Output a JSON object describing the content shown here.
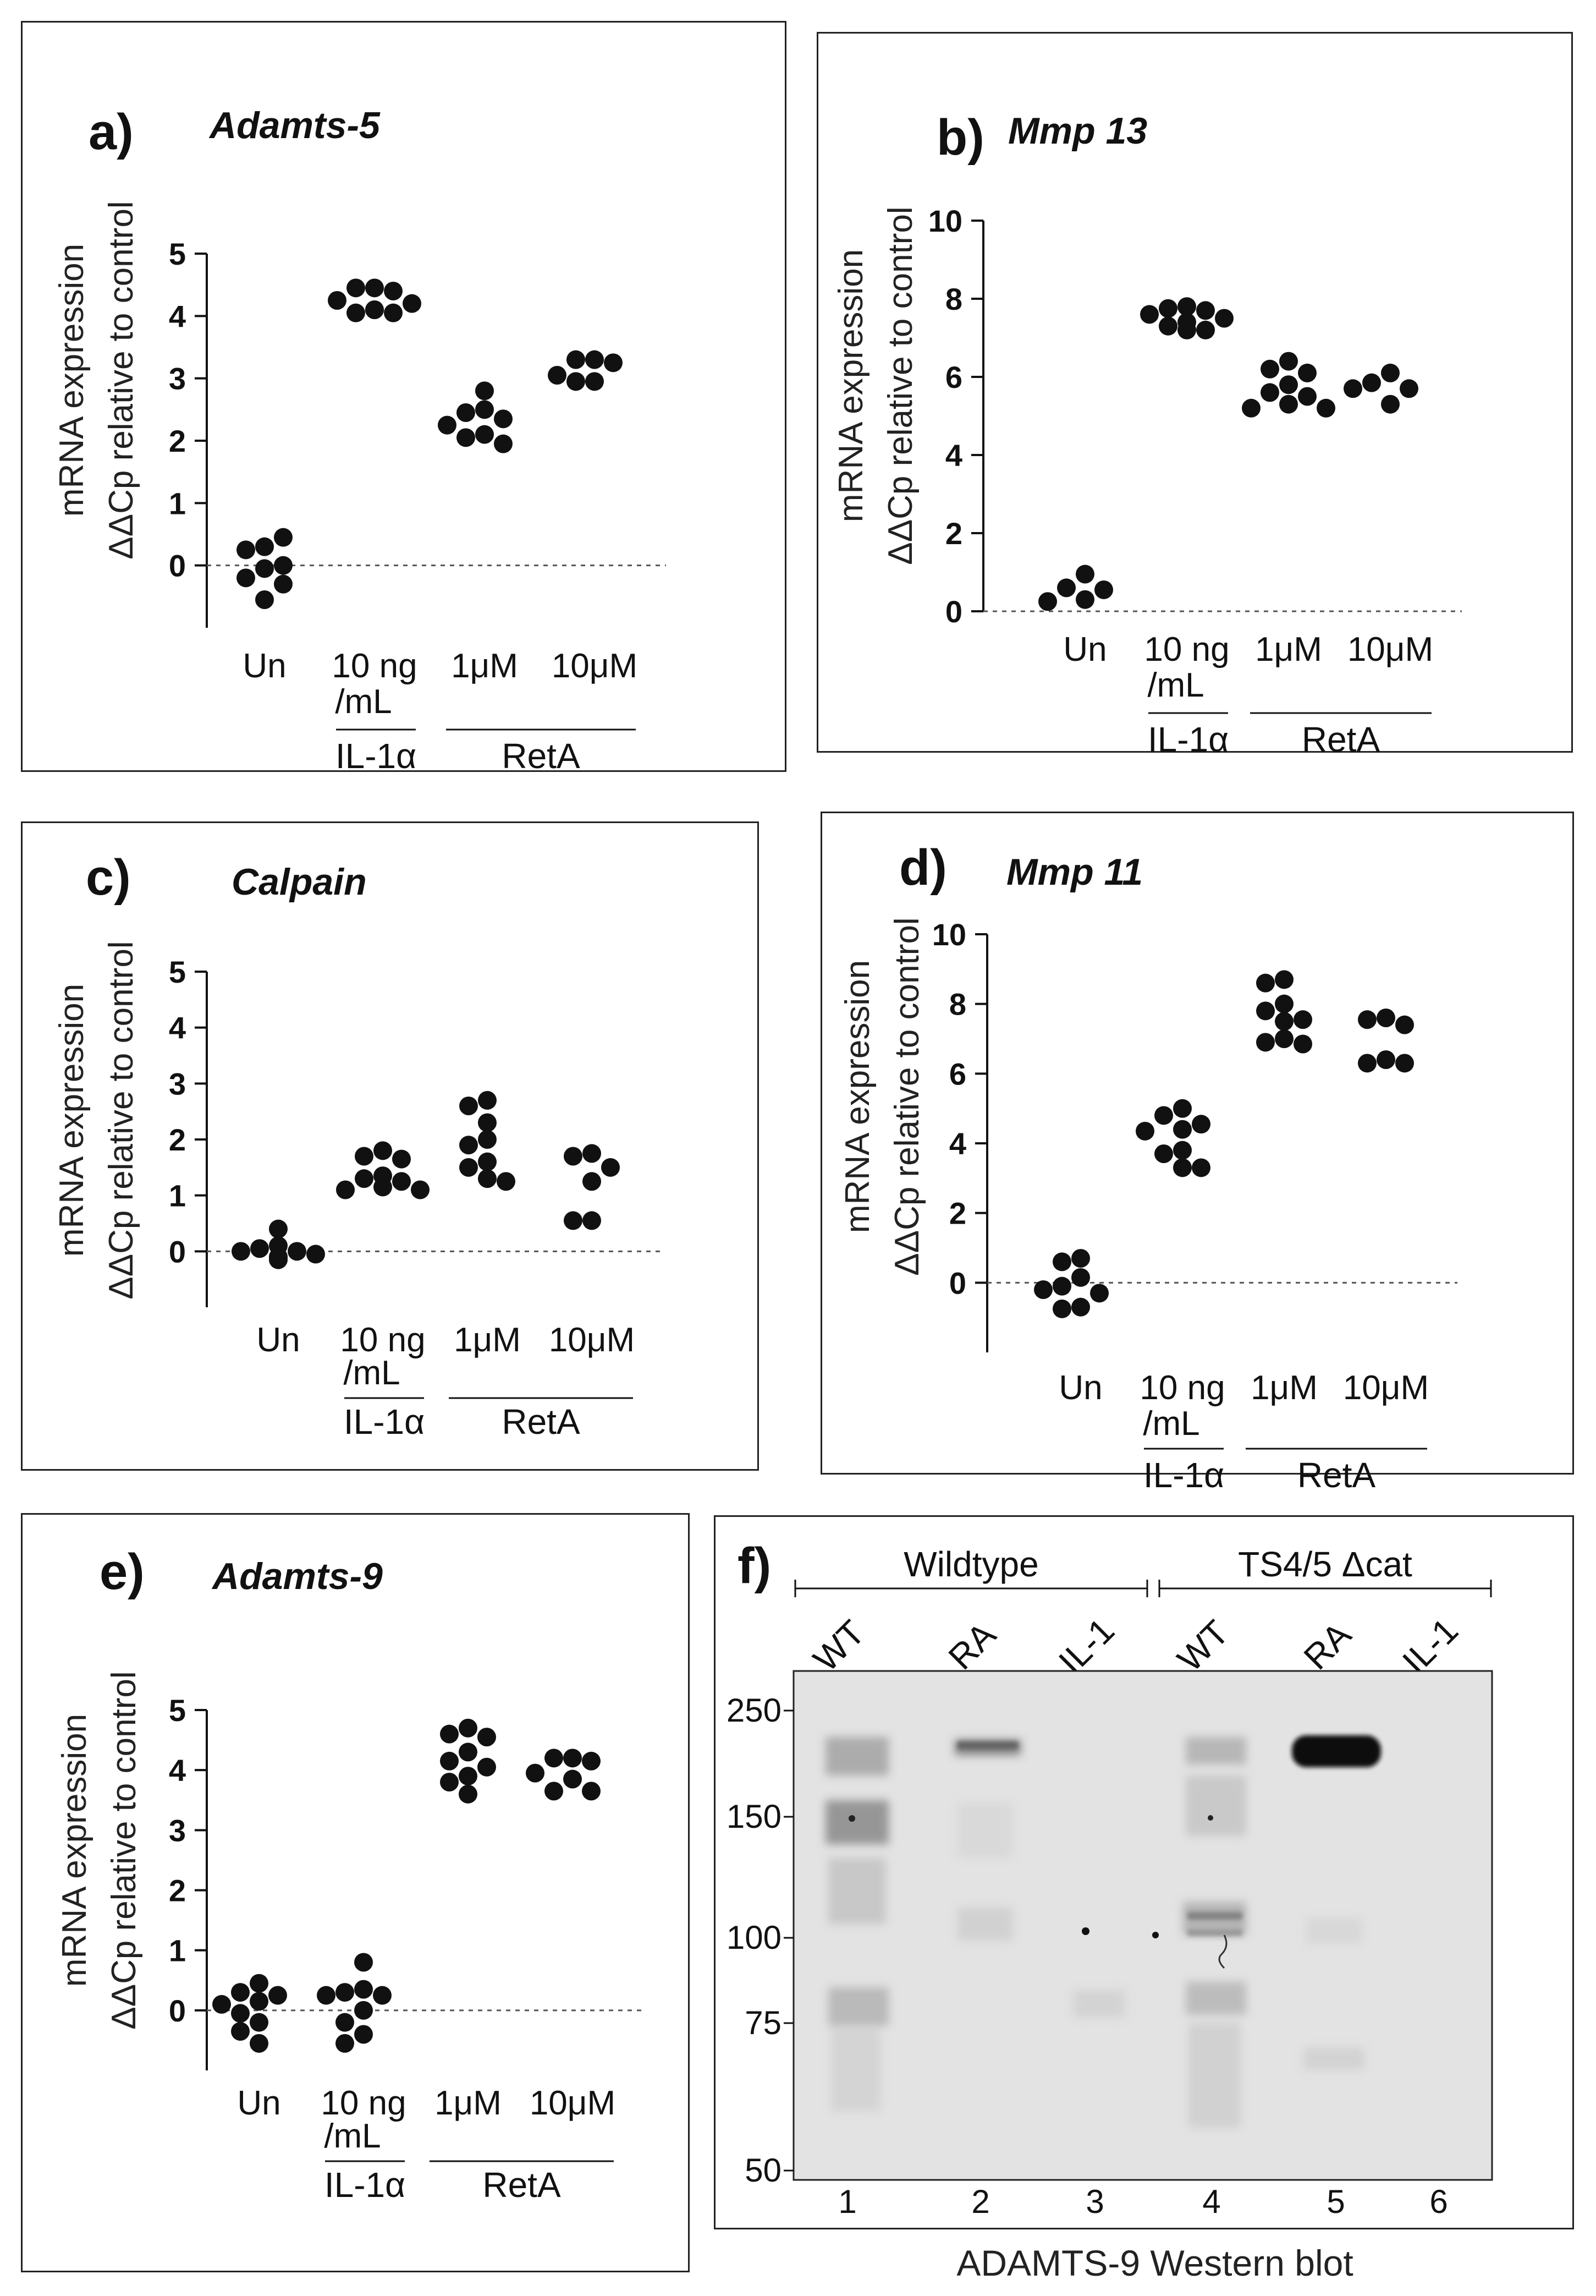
{
  "colors": {
    "dot": "#111111",
    "axis": "#111111",
    "zero_line": "#555555",
    "band": "#111111",
    "blot_bg": "#e3e3e3"
  },
  "chart_data": [
    {
      "type": "scatter",
      "panel": "a)",
      "title": "Adamts-5",
      "ylabel_lines": [
        "mRNA expression",
        "ΔΔCp relative to control"
      ],
      "ylim": [
        -1,
        5
      ],
      "yticks": [
        0,
        1,
        2,
        3,
        4,
        5
      ],
      "zero_line": "dotted",
      "groups": [
        {
          "label": "Un",
          "label2": "",
          "values": [
            0.3,
            0.25,
            0.45,
            -0.05,
            0.0,
            -0.2,
            -0.3,
            -0.55
          ]
        },
        {
          "label": "10 ng",
          "label2": "/mL",
          "values": [
            4.45,
            4.45,
            4.4,
            4.25,
            4.2,
            4.1,
            4.05,
            4.05,
            4.1
          ]
        },
        {
          "label": "1μM",
          "label2": "",
          "values": [
            2.8,
            2.5,
            2.45,
            2.35,
            2.25,
            2.1,
            2.05,
            1.95
          ]
        },
        {
          "label": "10μM",
          "label2": "",
          "values": [
            3.3,
            3.3,
            3.25,
            3.05,
            2.95,
            2.95
          ]
        }
      ],
      "brackets": [
        {
          "label": "IL-1α",
          "from": 1,
          "to": 1
        },
        {
          "label": "RetA",
          "from": 2,
          "to": 3
        }
      ]
    },
    {
      "type": "scatter",
      "panel": "b)",
      "title": "Mmp 13",
      "ylabel_lines": [
        "mRNA expression",
        "ΔΔCp relative to control"
      ],
      "ylim": [
        0,
        10
      ],
      "yticks": [
        0,
        2,
        4,
        6,
        8,
        10
      ],
      "zero_line": "dotted",
      "groups": [
        {
          "label": "Un",
          "label2": "",
          "values": [
            0.95,
            0.6,
            0.55,
            0.3,
            0.25
          ]
        },
        {
          "label": "10 ng",
          "label2": "/mL",
          "values": [
            7.8,
            7.75,
            7.7,
            7.6,
            7.5,
            7.4,
            7.3,
            7.2,
            7.2
          ]
        },
        {
          "label": "1μM",
          "label2": "",
          "values": [
            6.4,
            6.2,
            6.1,
            5.8,
            5.6,
            5.5,
            5.3,
            5.2,
            5.2
          ]
        },
        {
          "label": "10μM",
          "label2": "",
          "values": [
            6.1,
            5.85,
            5.7,
            5.7,
            5.3
          ]
        }
      ],
      "brackets": [
        {
          "label": "IL-1α",
          "from": 1,
          "to": 1
        },
        {
          "label": "RetA",
          "from": 2,
          "to": 3
        }
      ]
    },
    {
      "type": "scatter",
      "panel": "c)",
      "title": "Calpain",
      "ylabel_lines": [
        "mRNA expression",
        "ΔΔCp relative to control"
      ],
      "ylim": [
        -1,
        5
      ],
      "yticks": [
        0,
        1,
        2,
        3,
        4,
        5
      ],
      "zero_line": "dotted",
      "groups": [
        {
          "label": "Un",
          "label2": "",
          "values": [
            0.4,
            0.1,
            0.05,
            0.0,
            0.0,
            -0.05,
            -0.1,
            -0.15,
            -0.1
          ]
        },
        {
          "label": "10 ng",
          "label2": "/mL",
          "values": [
            1.8,
            1.7,
            1.65,
            1.35,
            1.3,
            1.25,
            1.1,
            1.1,
            1.15
          ]
        },
        {
          "label": "1μM",
          "label2": "",
          "values": [
            2.7,
            2.6,
            2.3,
            2.0,
            1.9,
            1.6,
            1.5,
            1.3,
            1.25
          ]
        },
        {
          "label": "10μM",
          "label2": "",
          "values": [
            1.75,
            1.7,
            1.5,
            1.25,
            0.55,
            0.55
          ]
        }
      ],
      "brackets": [
        {
          "label": "IL-1α",
          "from": 1,
          "to": 1
        },
        {
          "label": "RetA",
          "from": 2,
          "to": 3
        }
      ]
    },
    {
      "type": "scatter",
      "panel": "d)",
      "title": "Mmp 11",
      "ylabel_lines": [
        "mRNA expression",
        "ΔΔCp relative to control"
      ],
      "ylim": [
        -2,
        10
      ],
      "yticks": [
        0,
        2,
        4,
        6,
        8,
        10
      ],
      "zero_line": "dotted",
      "groups": [
        {
          "label": "Un",
          "label2": "",
          "values": [
            0.7,
            0.6,
            0.15,
            -0.1,
            -0.3,
            -0.7,
            -0.75,
            -0.2
          ]
        },
        {
          "label": "10 ng",
          "label2": "/mL",
          "values": [
            5.0,
            4.8,
            4.55,
            4.4,
            4.35,
            3.8,
            3.7,
            3.3,
            3.3
          ]
        },
        {
          "label": "1μM",
          "label2": "",
          "values": [
            8.7,
            8.6,
            8.0,
            7.8,
            7.55,
            7.5,
            7.0,
            6.9,
            6.85
          ]
        },
        {
          "label": "10μM",
          "label2": "",
          "values": [
            7.6,
            7.55,
            7.4,
            6.4,
            6.3,
            6.3
          ]
        }
      ],
      "brackets": [
        {
          "label": "IL-1α",
          "from": 1,
          "to": 1
        },
        {
          "label": "RetA",
          "from": 2,
          "to": 3
        }
      ]
    },
    {
      "type": "scatter",
      "panel": "e)",
      "title": "Adamts-9",
      "ylabel_lines": [
        "mRNA expression",
        "ΔΔCp relative to control"
      ],
      "ylim": [
        -1,
        5
      ],
      "yticks": [
        0,
        1,
        2,
        3,
        4,
        5
      ],
      "zero_line": "dotted",
      "groups": [
        {
          "label": "Un",
          "label2": "",
          "values": [
            0.45,
            0.3,
            0.25,
            0.15,
            0.1,
            -0.05,
            -0.2,
            -0.35,
            -0.55
          ]
        },
        {
          "label": "10 ng",
          "label2": "/mL",
          "values": [
            0.8,
            0.35,
            0.3,
            0.25,
            0.25,
            0.0,
            -0.2,
            -0.4,
            -0.55
          ]
        },
        {
          "label": "1μM",
          "label2": "",
          "values": [
            4.7,
            4.6,
            4.55,
            4.3,
            4.15,
            4.05,
            3.9,
            3.8,
            3.6
          ]
        },
        {
          "label": "10μM",
          "label2": "",
          "values": [
            4.2,
            4.2,
            4.15,
            3.95,
            3.85,
            3.65,
            3.65
          ]
        }
      ],
      "brackets": [
        {
          "label": "IL-1α",
          "from": 1,
          "to": 1
        },
        {
          "label": "RetA",
          "from": 2,
          "to": 3
        }
      ]
    }
  ],
  "western": {
    "panel": "f)",
    "groups": [
      {
        "label": "Wildtype",
        "from": 0,
        "to": 2
      },
      {
        "label": "TS4/5 Δcat",
        "from": 3,
        "to": 5
      }
    ],
    "lane_labels": [
      "WT",
      "RA",
      "IL-1",
      "WT",
      "RA",
      "IL-1"
    ],
    "lane_numbers": [
      "1",
      "2",
      "3",
      "4",
      "5",
      "6"
    ],
    "mw_markers": [
      "250",
      "150",
      "100",
      "75",
      "50"
    ],
    "caption": "ADAMTS-9 Western blot"
  }
}
